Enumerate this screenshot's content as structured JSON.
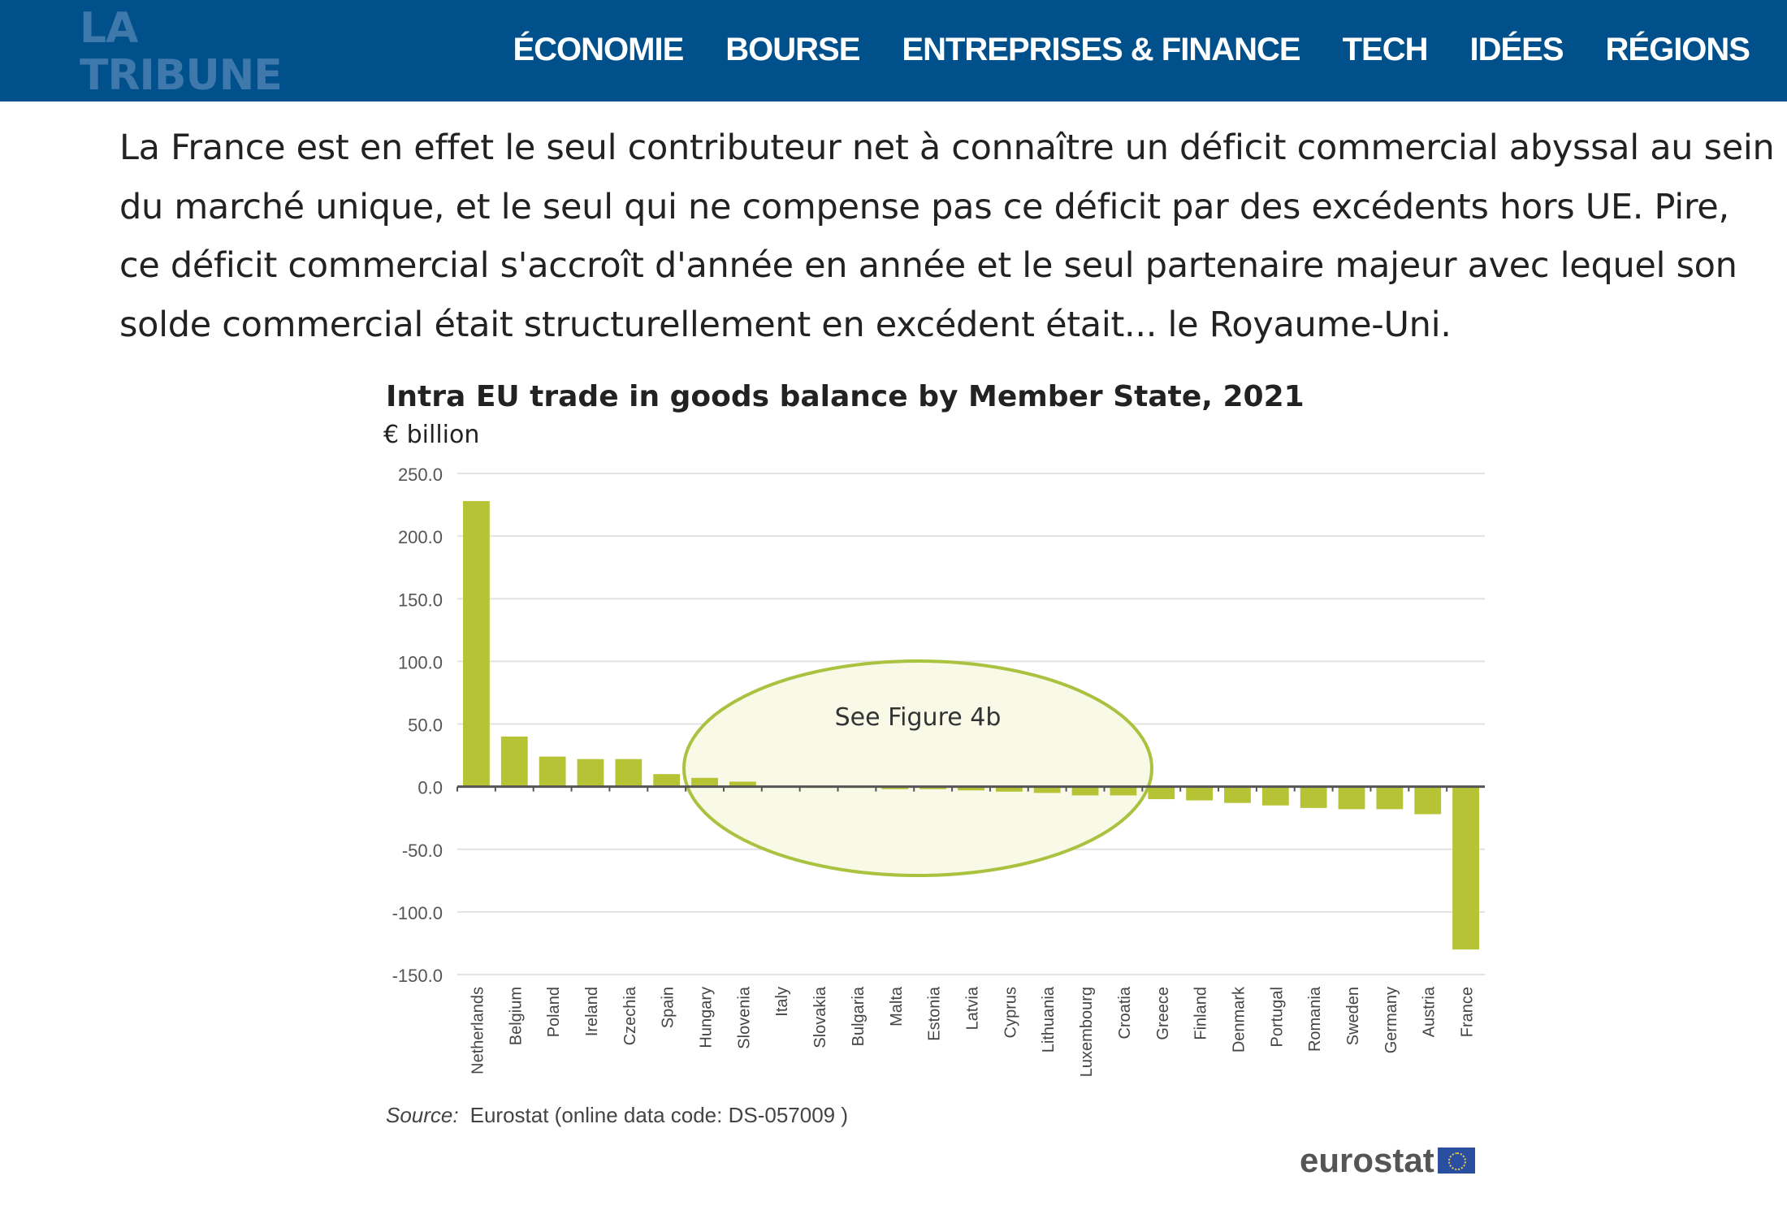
{
  "header": {
    "logo": "LA TRIBUNE",
    "nav": [
      "ÉCONOMIE",
      "BOURSE",
      "ENTREPRISES & FINANCE",
      "TECH",
      "IDÉES",
      "RÉGIONS"
    ],
    "bg_color": "#00508c"
  },
  "article": {
    "paragraph": "La France est en effet le seul contributeur net à connaître un déficit commercial abyssal au sein du marché unique, et le seul qui ne compense pas ce déficit par des excédents hors UE. Pire, ce déficit commercial s'accroît d'année en année et le seul partenaire majeur avec lequel son solde commercial était structurellement en excédent était... le Royaume-Uni."
  },
  "chart_data": {
    "type": "bar",
    "title": "Intra EU trade in goods balance by Member State, 2021",
    "ylabel": "€ billion",
    "ylim": [
      -150,
      250
    ],
    "yticks": [
      "250.0",
      "200.0",
      "150.0",
      "100.0",
      "50.0",
      "0.0",
      "-50.0",
      "-100.0",
      "-150.0"
    ],
    "grid": true,
    "bar_color": "#b5c334",
    "categories": [
      "Netherlands",
      "Belgium",
      "Poland",
      "Ireland",
      "Czechia",
      "Spain",
      "Hungary",
      "Slovenia",
      "Italy",
      "Slovakia",
      "Bulgaria",
      "Malta",
      "Estonia",
      "Latvia",
      "Cyprus",
      "Lithuania",
      "Luxembourg",
      "Croatia",
      "Greece",
      "Finland",
      "Denmark",
      "Portugal",
      "Romania",
      "Sweden",
      "Germany",
      "Austria",
      "France"
    ],
    "values": [
      228,
      40,
      24,
      22,
      22,
      10,
      7,
      4,
      0.5,
      -0.5,
      -1,
      -2,
      -2,
      -3,
      -4,
      -5,
      -7,
      -7,
      -10,
      -11,
      -13,
      -15,
      -17,
      -18,
      -18,
      -22,
      -130
    ],
    "annotation": "See Figure 4b",
    "source_label": "Source:",
    "source_text": "Eurostat (online data code: DS-057009 )",
    "logo": "eurostat"
  }
}
